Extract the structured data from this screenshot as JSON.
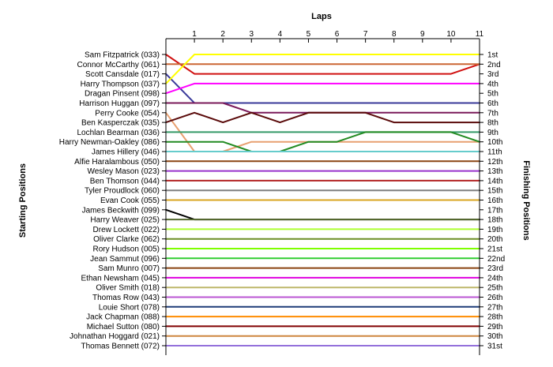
{
  "chart_data": {
    "type": "line",
    "title": "",
    "top_axis_label": "Laps",
    "left_axis_label": "Starting Positions",
    "right_axis_label": "Finishing Positions",
    "laps": [
      0,
      1,
      2,
      3,
      4,
      5,
      6,
      7,
      8,
      9,
      10,
      11
    ],
    "lap_tick_labels": [
      "1",
      "2",
      "3",
      "4",
      "5",
      "6",
      "7",
      "8",
      "9",
      "10",
      "11"
    ],
    "y_reversed": true,
    "ylim": [
      1,
      31
    ],
    "grid": false,
    "starting_labels": [
      "Sam Fitzpatrick (033)",
      "Connor McCarthy (061)",
      "Scott Cansdale (017)",
      "Harry Thompson (037)",
      "Dragan Pinsent (098)",
      "Harrison Huggan (097)",
      "Perry Cooke (054)",
      "Ben Kasperczak (035)",
      "Lochlan Bearman (036)",
      "Harry Newman-Oakley (086)",
      "James Hillery (046)",
      "Alfie Haralambous (050)",
      "Wesley Mason (023)",
      "Ben Thomson (044)",
      "Tyler Proudlock (060)",
      "Evan Cook (055)",
      "James Beckwith (099)",
      "Harry Weaver (025)",
      "Drew Lockett (022)",
      "Oliver Clarke (062)",
      "Rory Hudson (005)",
      "Jean Sammut (096)",
      "Sam Munro (007)",
      "Ethan Newsham (045)",
      "Oliver Smith (018)",
      "Thomas Row (043)",
      "Louie Short (078)",
      "Jack Chapman (088)",
      "Michael Sutton (080)",
      "Johnathan Hoggard (021)",
      "Thomas Bennett (072)"
    ],
    "finishing_labels": [
      "1st",
      "2nd",
      "3rd",
      "4th",
      "5th",
      "6th",
      "7th",
      "8th",
      "9th",
      "10th",
      "11th",
      "12th",
      "13th",
      "14th",
      "15th",
      "16th",
      "17th",
      "18th",
      "19th",
      "20th",
      "21st",
      "22nd",
      "23rd",
      "24th",
      "25th",
      "26th",
      "27th",
      "28th",
      "29th",
      "30th",
      "31st"
    ],
    "series": [
      {
        "color": "#d01010",
        "values": [
          1,
          3,
          3,
          3,
          3,
          3,
          3,
          3,
          3,
          3,
          3,
          2
        ]
      },
      {
        "color": "#cc6633",
        "values": [
          2,
          2,
          2,
          2,
          2,
          2,
          2,
          2,
          2,
          2,
          2,
          2
        ]
      },
      {
        "color": "#3a3a9a",
        "values": [
          3,
          6,
          6,
          6,
          6,
          6,
          6,
          6,
          6,
          6,
          6,
          6
        ]
      },
      {
        "color": "#ffff00",
        "values": [
          4,
          1,
          1,
          1,
          1,
          1,
          1,
          1,
          1,
          1,
          1,
          1
        ]
      },
      {
        "color": "#ff00ff",
        "values": [
          5,
          4,
          4,
          4,
          4,
          4,
          4,
          4,
          4,
          4,
          4,
          4
        ]
      },
      {
        "color": "#7a1a5a",
        "values": [
          6,
          6,
          6,
          7,
          7,
          7,
          7,
          7,
          7,
          7,
          7,
          7
        ]
      },
      {
        "color": "#e8a070",
        "values": [
          7,
          11,
          11,
          10,
          10,
          10,
          10,
          10,
          10,
          10,
          10,
          10
        ]
      },
      {
        "color": "#5a0a0a",
        "values": [
          8,
          7,
          8,
          7,
          8,
          7,
          7,
          7,
          8,
          8,
          8,
          8
        ]
      },
      {
        "color": "#339966",
        "values": [
          9,
          9,
          9,
          9,
          9,
          9,
          9,
          9,
          9,
          9,
          9,
          9
        ]
      },
      {
        "color": "#228b22",
        "values": [
          10,
          10,
          10,
          11,
          11,
          10,
          10,
          9,
          9,
          9,
          9,
          10
        ]
      },
      {
        "color": "#66cccc",
        "values": [
          11,
          11,
          11,
          11,
          11,
          11,
          11,
          11,
          11,
          11,
          11,
          11
        ]
      },
      {
        "color": "#8b4513",
        "values": [
          12,
          12,
          12,
          12,
          12,
          12,
          12,
          12,
          12,
          12,
          12,
          12
        ]
      },
      {
        "color": "#9932cc",
        "values": [
          13,
          13,
          13,
          13,
          13,
          13,
          13,
          13,
          13,
          13,
          13,
          13
        ]
      },
      {
        "color": "#b22222",
        "values": [
          14,
          14,
          14,
          14,
          14,
          14,
          14,
          14,
          14,
          14,
          14,
          14
        ]
      },
      {
        "color": "#808080",
        "values": [
          15,
          15,
          15,
          15,
          15,
          15,
          15,
          15,
          15,
          15,
          15,
          15
        ]
      },
      {
        "color": "#daa520",
        "values": [
          16,
          16,
          16,
          16,
          16,
          16,
          16,
          16,
          16,
          16,
          16,
          16
        ]
      },
      {
        "color": "#000000",
        "values": [
          17,
          18,
          18,
          18,
          18,
          18,
          18,
          18,
          18,
          18,
          18,
          18
        ]
      },
      {
        "color": "#556b2f",
        "values": [
          18,
          18,
          18,
          18,
          18,
          18,
          18,
          18,
          18,
          18,
          18,
          18
        ]
      },
      {
        "color": "#adff2f",
        "values": [
          19,
          19,
          19,
          19,
          19,
          19,
          19,
          19,
          19,
          19,
          19,
          19
        ]
      },
      {
        "color": "#6b8e23",
        "values": [
          20,
          20,
          20,
          20,
          20,
          20,
          20,
          20,
          20,
          20,
          20,
          20
        ]
      },
      {
        "color": "#7fff00",
        "values": [
          21,
          21,
          21,
          21,
          21,
          21,
          21,
          21,
          21,
          21,
          21,
          21
        ]
      },
      {
        "color": "#32cd32",
        "values": [
          22,
          22,
          22,
          22,
          22,
          22,
          22,
          22,
          22,
          22,
          22,
          22
        ]
      },
      {
        "color": "#8b4513",
        "values": [
          23,
          23,
          23,
          23,
          23,
          23,
          23,
          23,
          23,
          23,
          23,
          23
        ]
      },
      {
        "color": "#e000e0",
        "values": [
          24,
          24,
          24,
          24,
          24,
          24,
          24,
          24,
          24,
          24,
          24,
          24
        ]
      },
      {
        "color": "#bdb76b",
        "values": [
          25,
          25,
          25,
          25,
          25,
          25,
          25,
          25,
          25,
          25,
          25,
          25
        ]
      },
      {
        "color": "#ba55d3",
        "values": [
          26,
          26,
          26,
          26,
          26,
          26,
          26,
          26,
          26,
          26,
          26,
          26
        ]
      },
      {
        "color": "#1e3c78",
        "values": [
          27,
          27,
          27,
          27,
          27,
          27,
          27,
          27,
          27,
          27,
          27,
          27
        ]
      },
      {
        "color": "#ff8c00",
        "values": [
          28,
          28,
          28,
          28,
          28,
          28,
          28,
          28,
          28,
          28,
          28,
          28
        ]
      },
      {
        "color": "#800000",
        "values": [
          29,
          29,
          29,
          29,
          29,
          29,
          29,
          29,
          29,
          29,
          29,
          29
        ]
      },
      {
        "color": "#cd853f",
        "values": [
          30,
          30,
          30,
          30,
          30,
          30,
          30,
          30,
          30,
          30,
          30,
          30
        ]
      },
      {
        "color": "#9370db",
        "values": [
          31,
          31,
          31,
          31,
          31,
          31,
          31,
          31,
          31,
          31,
          31,
          31
        ]
      }
    ]
  }
}
